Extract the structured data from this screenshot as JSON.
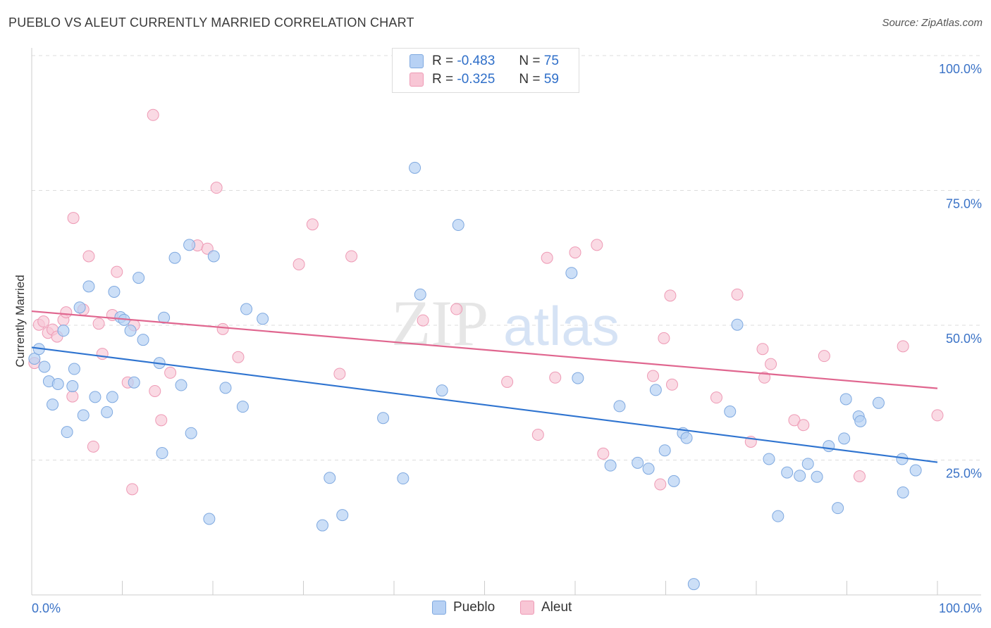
{
  "title": "PUEBLO VS ALEUT CURRENTLY MARRIED CORRELATION CHART",
  "source": "Source: ZipAtlas.com",
  "watermark": {
    "zip": "ZIP",
    "atlas": "atlas"
  },
  "legend": {
    "rows": [
      {
        "r_label": "R =",
        "r_value": "-0.483",
        "n_label": "N =",
        "n_value": "75"
      },
      {
        "r_label": "R =",
        "r_value": "-0.325",
        "n_label": "N =",
        "n_value": "59"
      }
    ],
    "bottom": [
      "Pueblo",
      "Aleut"
    ]
  },
  "colors": {
    "pueblo_fill": "#b7d1f4",
    "pueblo_stroke": "#7fa9e0",
    "pueblo_line": "#2f74d0",
    "aleut_fill": "#f8c6d5",
    "aleut_stroke": "#ee9ab5",
    "aleut_line": "#e0668f",
    "tick_label": "#3b73c7",
    "grid": "#dddddd"
  },
  "chart_data": {
    "type": "scatter",
    "title": "PUEBLO VS ALEUT CURRENTLY MARRIED CORRELATION CHART",
    "xlabel": "",
    "ylabel": "Currently Married",
    "xlim": [
      0,
      100
    ],
    "ylim": [
      0,
      100
    ],
    "x_tick_labels": [
      "0.0%",
      "100.0%"
    ],
    "y_ticks": [
      25,
      50,
      75,
      100
    ],
    "y_tick_labels": [
      "25.0%",
      "50.0%",
      "75.0%",
      "100.0%"
    ],
    "grid": true,
    "legend_position": "top-center",
    "series": [
      {
        "name": "Pueblo",
        "trend": {
          "x": [
            0,
            100
          ],
          "y": [
            45.9,
            24.6
          ]
        },
        "points": [
          [
            0.3,
            43.8
          ],
          [
            0.8,
            45.6
          ],
          [
            1.4,
            42.3
          ],
          [
            1.9,
            39.6
          ],
          [
            2.3,
            35.3
          ],
          [
            2.9,
            39.1
          ],
          [
            3.5,
            49.0
          ],
          [
            3.9,
            30.2
          ],
          [
            4.5,
            38.7
          ],
          [
            4.7,
            41.9
          ],
          [
            5.3,
            53.3
          ],
          [
            5.7,
            33.3
          ],
          [
            6.3,
            57.2
          ],
          [
            7.0,
            36.7
          ],
          [
            8.3,
            33.9
          ],
          [
            8.9,
            36.7
          ],
          [
            9.1,
            56.2
          ],
          [
            9.8,
            51.5
          ],
          [
            10.2,
            51.0
          ],
          [
            10.9,
            49.0
          ],
          [
            11.3,
            39.4
          ],
          [
            11.8,
            58.8
          ],
          [
            12.3,
            47.3
          ],
          [
            14.1,
            43.0
          ],
          [
            14.4,
            26.3
          ],
          [
            14.6,
            51.4
          ],
          [
            15.8,
            62.5
          ],
          [
            16.5,
            38.9
          ],
          [
            17.4,
            64.9
          ],
          [
            17.6,
            30.0
          ],
          [
            19.6,
            14.1
          ],
          [
            20.1,
            62.8
          ],
          [
            21.4,
            38.4
          ],
          [
            23.3,
            34.9
          ],
          [
            23.7,
            53.0
          ],
          [
            25.5,
            51.2
          ],
          [
            32.1,
            12.9
          ],
          [
            32.9,
            21.7
          ],
          [
            34.3,
            14.8
          ],
          [
            38.8,
            32.8
          ],
          [
            41.0,
            21.6
          ],
          [
            42.3,
            79.2
          ],
          [
            42.9,
            55.7
          ],
          [
            45.3,
            37.9
          ],
          [
            47.1,
            68.6
          ],
          [
            59.6,
            59.7
          ],
          [
            60.3,
            40.2
          ],
          [
            63.9,
            24.0
          ],
          [
            64.9,
            35.0
          ],
          [
            66.9,
            24.5
          ],
          [
            68.1,
            23.4
          ],
          [
            68.9,
            38.0
          ],
          [
            69.9,
            26.8
          ],
          [
            70.9,
            21.1
          ],
          [
            71.9,
            30.0
          ],
          [
            72.3,
            29.1
          ],
          [
            73.1,
            2.0
          ],
          [
            77.1,
            34.0
          ],
          [
            77.9,
            50.1
          ],
          [
            81.4,
            25.2
          ],
          [
            82.4,
            14.6
          ],
          [
            83.4,
            22.7
          ],
          [
            84.8,
            22.1
          ],
          [
            85.7,
            24.3
          ],
          [
            86.7,
            21.9
          ],
          [
            88.0,
            27.6
          ],
          [
            89.0,
            16.1
          ],
          [
            89.7,
            29.0
          ],
          [
            89.9,
            36.3
          ],
          [
            91.3,
            33.1
          ],
          [
            91.5,
            32.2
          ],
          [
            93.5,
            35.6
          ],
          [
            96.1,
            25.2
          ],
          [
            96.2,
            19.0
          ],
          [
            97.6,
            23.1
          ]
        ]
      },
      {
        "name": "Aleut",
        "trend": {
          "x": [
            0,
            100
          ],
          "y": [
            52.6,
            38.3
          ]
        },
        "points": [
          [
            0.3,
            43.0
          ],
          [
            0.8,
            50.1
          ],
          [
            1.3,
            50.7
          ],
          [
            1.8,
            48.6
          ],
          [
            2.3,
            49.2
          ],
          [
            2.8,
            47.9
          ],
          [
            3.5,
            51.0
          ],
          [
            3.8,
            52.4
          ],
          [
            4.5,
            36.8
          ],
          [
            4.6,
            69.9
          ],
          [
            5.7,
            52.9
          ],
          [
            6.3,
            62.8
          ],
          [
            6.8,
            27.5
          ],
          [
            7.4,
            50.3
          ],
          [
            7.8,
            44.7
          ],
          [
            8.9,
            51.9
          ],
          [
            9.4,
            59.9
          ],
          [
            10.6,
            39.4
          ],
          [
            11.1,
            19.6
          ],
          [
            11.3,
            50.0
          ],
          [
            13.4,
            89.0
          ],
          [
            13.6,
            37.8
          ],
          [
            14.3,
            32.4
          ],
          [
            15.3,
            41.2
          ],
          [
            18.3,
            64.8
          ],
          [
            19.4,
            64.2
          ],
          [
            20.4,
            75.5
          ],
          [
            21.1,
            49.3
          ],
          [
            22.8,
            44.1
          ],
          [
            29.5,
            61.3
          ],
          [
            31.0,
            68.7
          ],
          [
            34.0,
            41.0
          ],
          [
            35.3,
            62.8
          ],
          [
            43.2,
            50.9
          ],
          [
            46.9,
            53.0
          ],
          [
            52.5,
            39.5
          ],
          [
            55.9,
            29.7
          ],
          [
            56.9,
            62.5
          ],
          [
            57.8,
            40.3
          ],
          [
            60.0,
            63.5
          ],
          [
            62.4,
            64.9
          ],
          [
            63.1,
            26.2
          ],
          [
            68.6,
            40.6
          ],
          [
            69.4,
            20.5
          ],
          [
            69.8,
            47.6
          ],
          [
            70.5,
            55.5
          ],
          [
            70.7,
            39.0
          ],
          [
            75.6,
            36.6
          ],
          [
            77.9,
            55.7
          ],
          [
            79.4,
            28.4
          ],
          [
            80.7,
            45.6
          ],
          [
            80.9,
            40.3
          ],
          [
            81.6,
            42.8
          ],
          [
            84.2,
            32.4
          ],
          [
            85.2,
            31.5
          ],
          [
            87.5,
            44.3
          ],
          [
            91.4,
            22.0
          ],
          [
            96.2,
            46.1
          ],
          [
            100.0,
            33.3
          ]
        ]
      }
    ]
  }
}
